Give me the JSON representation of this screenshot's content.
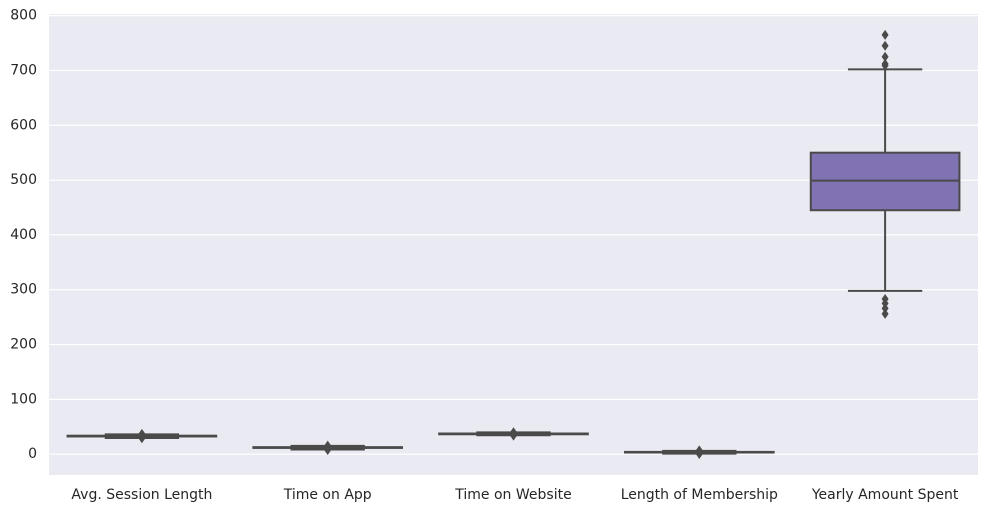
{
  "chart_data": {
    "type": "box",
    "categories": [
      "Avg. Session Length",
      "Time on App",
      "Time on Website",
      "Length of Membership",
      "Yearly Amount Spent"
    ],
    "colors": [
      "#4c72b0",
      "#dd8452",
      "#55a868",
      "#c44e52",
      "#8172b3"
    ],
    "boxes": [
      {
        "whislo": 29.5,
        "q1": 32.3,
        "med": 33.1,
        "q3": 33.7,
        "whishi": 36.1,
        "fliers": [
          29.0,
          37.0
        ]
      },
      {
        "whislo": 8.5,
        "q1": 11.4,
        "med": 12.0,
        "q3": 12.8,
        "whishi": 15.1,
        "fliers": [
          7.5,
          15.5
        ]
      },
      {
        "whislo": 34.5,
        "q1": 36.3,
        "med": 37.1,
        "q3": 37.7,
        "whishi": 39.8,
        "fliers": [
          33.9,
          40.0
        ]
      },
      {
        "whislo": 1.0,
        "q1": 3.0,
        "med": 3.5,
        "q3": 4.1,
        "whishi": 6.0,
        "fliers": [
          0.3,
          6.9
        ]
      },
      {
        "whislo": 298,
        "q1": 445,
        "med": 499,
        "q3": 550,
        "whishi": 702,
        "fliers": [
          709,
          712,
          725,
          745,
          765,
          256,
          266,
          275,
          283
        ]
      }
    ],
    "ylim": [
      -38,
      803
    ],
    "yticks": [
      0,
      100,
      200,
      300,
      400,
      500,
      600,
      700,
      800
    ],
    "grid": true
  }
}
